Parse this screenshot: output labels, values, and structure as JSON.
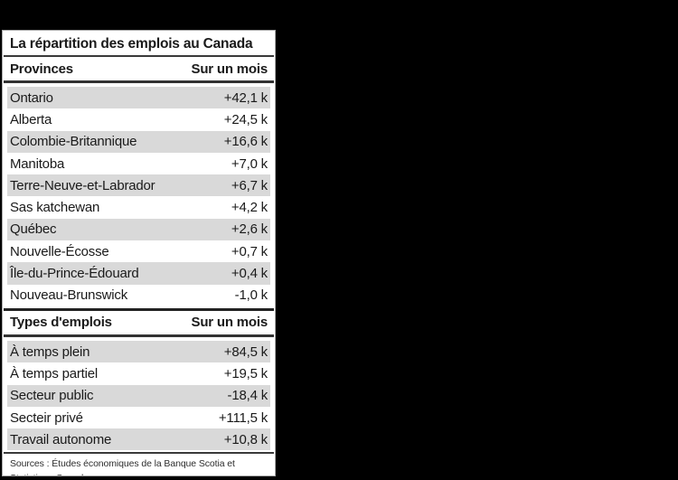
{
  "page": {
    "background": "#000000"
  },
  "panel": {
    "title": "La répartition des emplois au Canada",
    "source": "Sources : Études économiques de la Banque Scotia et Statistique Canada."
  },
  "tables": [
    {
      "label_header": "Provinces",
      "value_header": "Sur un mois",
      "rows": [
        {
          "label": "Ontario",
          "value": "+42,1 k"
        },
        {
          "label": "Alberta",
          "value": "+24,5 k"
        },
        {
          "label": "Colombie-Britannique",
          "value": "+16,6 k"
        },
        {
          "label": "Manitoba",
          "value": "+7,0 k"
        },
        {
          "label": "Terre-Neuve-et-Labrador",
          "value": "+6,7 k"
        },
        {
          "label": "Sas katchewan",
          "value": "+4,2 k"
        },
        {
          "label": "Québec",
          "value": "+2,6 k"
        },
        {
          "label": "Nouvelle-Écosse",
          "value": "+0,7 k"
        },
        {
          "label": "Île-du-Prince-Édouard",
          "value": "+0,4 k"
        },
        {
          "label": "Nouveau-Brunswick",
          "value": "-1,0 k"
        }
      ]
    },
    {
      "label_header": "Types d'emplois",
      "value_header": "Sur un mois",
      "rows": [
        {
          "label": "À temps plein",
          "value": "+84,5 k"
        },
        {
          "label": "À temps partiel",
          "value": "+19,5 k"
        },
        {
          "label": "Secteur public",
          "value": "-18,4 k"
        },
        {
          "label": "Secteir privé",
          "value": "+111,5 k"
        },
        {
          "label": "Travail autonome",
          "value": "+10,8 k"
        }
      ]
    }
  ],
  "chart_data": [
    {
      "type": "table",
      "title": "La répartition des emplois au Canada",
      "columns": [
        "Provinces",
        "Sur un mois"
      ],
      "rows": [
        [
          "Ontario",
          "+42,1 k"
        ],
        [
          "Alberta",
          "+24,5 k"
        ],
        [
          "Colombie-Britannique",
          "+16,6 k"
        ],
        [
          "Manitoba",
          "+7,0 k"
        ],
        [
          "Terre-Neuve-et-Labrador",
          "+6,7 k"
        ],
        [
          "Sas katchewan",
          "+4,2 k"
        ],
        [
          "Québec",
          "+2,6 k"
        ],
        [
          "Nouvelle-Écosse",
          "+0,7 k"
        ],
        [
          "Île-du-Prince-Édouard",
          "+0,4 k"
        ],
        [
          "Nouveau-Brunswick",
          "-1,0 k"
        ]
      ],
      "values_thousands": [
        42.1,
        24.5,
        16.6,
        7.0,
        6.7,
        4.2,
        2.6,
        0.7,
        0.4,
        -1.0
      ]
    },
    {
      "type": "table",
      "title": "Types d'emplois",
      "columns": [
        "Types d'emplois",
        "Sur un mois"
      ],
      "rows": [
        [
          "À temps plein",
          "+84,5 k"
        ],
        [
          "À temps partiel",
          "+19,5 k"
        ],
        [
          "Secteur public",
          "-18,4 k"
        ],
        [
          "Secteir privé",
          "+111,5 k"
        ],
        [
          "Travail autonome",
          "+10,8 k"
        ]
      ],
      "values_thousands": [
        84.5,
        19.5,
        -18.4,
        111.5,
        10.8
      ]
    }
  ],
  "colors": {
    "page_bg": "#000000",
    "panel_bg": "#ffffff",
    "row_shade": "#d9d9d9",
    "rule_dark": "#3a3a3a",
    "section_rule": "#222222",
    "text": "#1a1a1a"
  }
}
